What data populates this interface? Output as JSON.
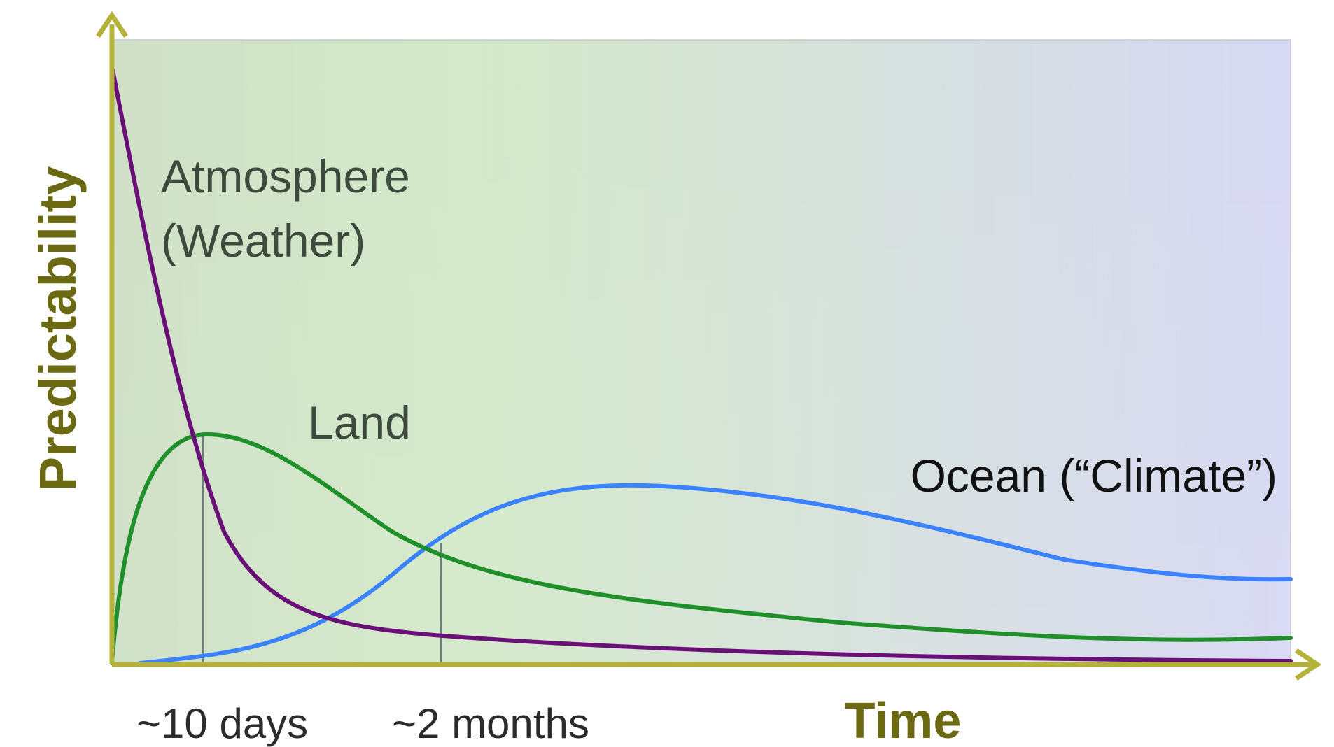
{
  "figure": {
    "ylabel": "Predictability",
    "xlabel": "Time",
    "xticks": [
      "~10 days",
      "~2 months"
    ],
    "labels": {
      "atmosphere_line1": "Atmosphere",
      "atmosphere_line2": "(Weather)",
      "land": "Land",
      "ocean": "Ocean (“Climate”)"
    },
    "colors": {
      "atmosphere": "#6a0f78",
      "land": "#1f8f2a",
      "ocean": "#3a82ff",
      "axis": "#b5b23a",
      "axis_label": "#6b6a12",
      "text": "#3d4a3d",
      "guide": "#6f7a82"
    }
  },
  "chart_data": {
    "type": "line",
    "xlabel": "Time",
    "ylabel": "Predictability",
    "xticks": [
      "~10 days",
      "~2 months"
    ],
    "series": [
      {
        "name": "Atmosphere (Weather)",
        "x": [
          0,
          0.05,
          0.1,
          0.15,
          0.2,
          0.3,
          0.4,
          0.6,
          0.8,
          1.0
        ],
        "y": [
          1.0,
          0.56,
          0.3,
          0.16,
          0.09,
          0.05,
          0.03,
          0.015,
          0.005,
          0.0
        ]
      },
      {
        "name": "Land",
        "x": [
          0,
          0.03,
          0.06,
          0.08,
          0.12,
          0.2,
          0.28,
          0.4,
          0.6,
          0.8,
          1.0
        ],
        "y": [
          0.0,
          0.3,
          0.42,
          0.45,
          0.42,
          0.31,
          0.2,
          0.13,
          0.09,
          0.05,
          0.04
        ]
      },
      {
        "name": "Ocean (“Climate”)",
        "x": [
          0.02,
          0.08,
          0.15,
          0.2,
          0.28,
          0.35,
          0.45,
          0.6,
          0.75,
          0.9,
          1.0
        ],
        "y": [
          0.0,
          0.01,
          0.08,
          0.2,
          0.3,
          0.3,
          0.29,
          0.25,
          0.2,
          0.15,
          0.14
        ]
      }
    ],
    "guides": [
      {
        "label": "~10 days",
        "x": 0.078
      },
      {
        "label": "~2 months",
        "x": 0.28
      }
    ]
  }
}
